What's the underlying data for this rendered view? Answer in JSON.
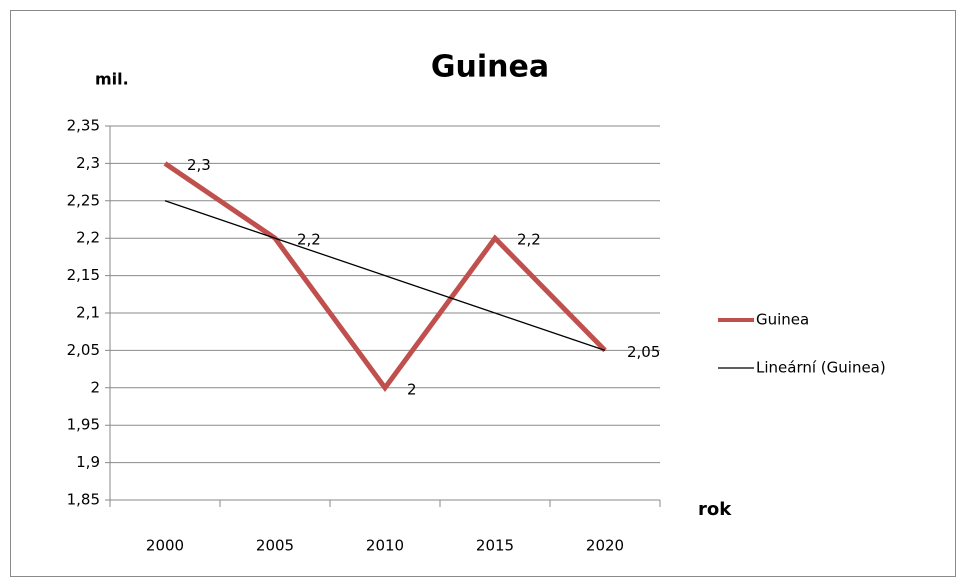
{
  "chart_data": {
    "type": "line",
    "title": "Guinea",
    "y_label": "mil.",
    "x_label": "rok",
    "categories": [
      "2000",
      "2005",
      "2010",
      "2015",
      "2020"
    ],
    "series": [
      {
        "name": "Guinea",
        "color": "#c0504d",
        "values": [
          2.3,
          2.2,
          2.0,
          2.2,
          2.05
        ],
        "value_labels": [
          "2,3",
          "2,2",
          "2",
          "2,2",
          "2,05"
        ]
      },
      {
        "name": "Lineární (Guinea)",
        "color": "#000000",
        "values": [
          2.25,
          2.2,
          2.15,
          2.1,
          2.05
        ]
      }
    ],
    "ylim": [
      1.85,
      2.35
    ],
    "yticks": [
      {
        "value": 1.85,
        "label": "1,85"
      },
      {
        "value": 1.9,
        "label": "1,9"
      },
      {
        "value": 1.95,
        "label": "1,95"
      },
      2,
      {
        "value": 2.05,
        "label": "2,05"
      },
      {
        "value": 2.1,
        "label": "2,1"
      },
      {
        "value": 2.15,
        "label": "2,15"
      },
      {
        "value": 2.2,
        "label": "2,2"
      },
      {
        "value": 2.25,
        "label": "2,25"
      },
      {
        "value": 2.3,
        "label": "2,3"
      },
      {
        "value": 2.35,
        "label": "2,35"
      }
    ],
    "grid": true,
    "legend": "right"
  }
}
